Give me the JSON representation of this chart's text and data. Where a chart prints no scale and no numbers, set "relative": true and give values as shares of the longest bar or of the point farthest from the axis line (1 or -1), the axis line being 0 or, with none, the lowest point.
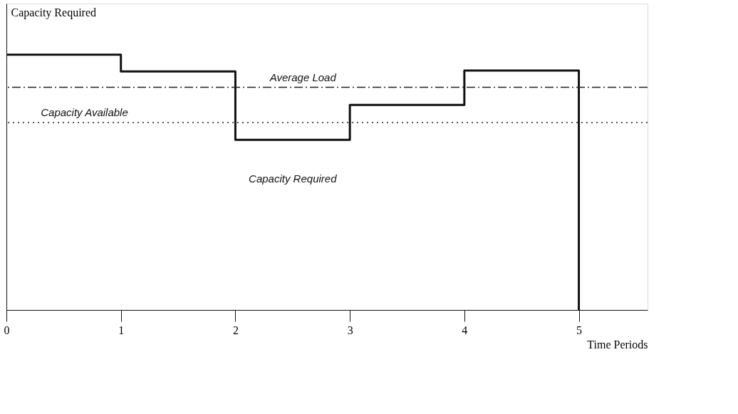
{
  "chart_data": {
    "type": "step",
    "relative": true,
    "xlabel": "Time Periods",
    "ylabel": "Capacity Required",
    "x": [
      0,
      1,
      2,
      3,
      4,
      5
    ],
    "xlim": [
      0,
      5.6
    ],
    "xticks": [
      0,
      1,
      2,
      3,
      4,
      5
    ],
    "series": [
      {
        "name": "Capacity Required",
        "color": "#111111",
        "values": [
          1,
          0.934,
          0.666,
          0.803,
          0.938,
          0
        ]
      }
    ],
    "ref_lines": [
      {
        "axis": "y",
        "value": 0.872,
        "label": "Average Load",
        "color": "#222222",
        "line_style": "dashdot"
      },
      {
        "axis": "y",
        "value": 0.734,
        "label": "Capacity Available",
        "color": "#222222",
        "line_style": "dotted"
      }
    ],
    "grid": false
  }
}
